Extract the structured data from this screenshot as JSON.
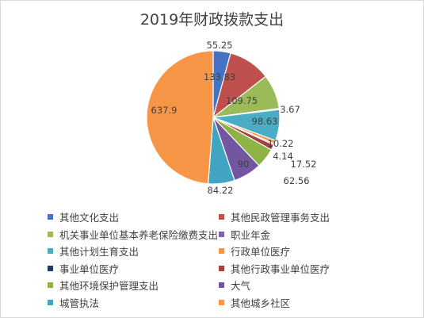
{
  "chart_data": {
    "type": "pie",
    "title": "2019年财政拨款支出",
    "categories": [
      "其他文化支出",
      "其他民政管理事务支出",
      "机关事业单位基本养老保险缴费支出",
      "职业年金",
      "其他计划生育支出",
      "行政单位医疗",
      "事业单位医疗",
      "其他行政事业单位医疗",
      "其他环境保护管理支出",
      "大气",
      "城管执法",
      "其他城乡社区"
    ],
    "values": [
      55.25,
      133.83,
      109.75,
      3.67,
      98.63,
      10.22,
      4.14,
      17.52,
      62.56,
      90,
      84.22,
      637.9
    ],
    "value_labels": [
      "55.25",
      "133.83",
      "109.75",
      "3.67",
      "98.63",
      "10.22",
      "4.14",
      "17.52",
      "62.56",
      "90",
      "84.22",
      "637.9"
    ],
    "colors": [
      "#4472c4",
      "#c0504d",
      "#9bbb59",
      "#8064a2",
      "#4bacc6",
      "#f79646",
      "#1f3864",
      "#a5403f",
      "#8db346",
      "#7256a0",
      "#41a5c2",
      "#f79646"
    ],
    "legend_position": "bottom"
  }
}
